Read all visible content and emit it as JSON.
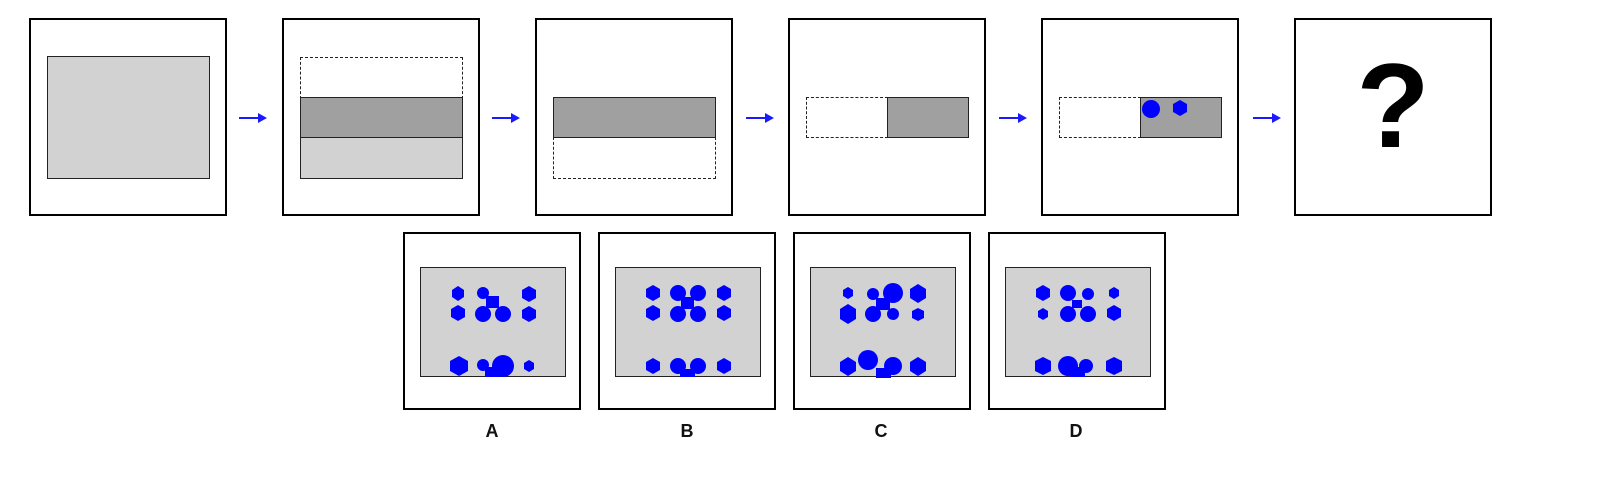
{
  "sequence": {
    "panels": [
      {
        "name": "panel-1",
        "desc_shapes": [
          "light-rect-full"
        ]
      },
      {
        "name": "panel-2"
      },
      {
        "name": "panel-3"
      },
      {
        "name": "panel-4"
      },
      {
        "name": "panel-5"
      },
      {
        "name": "panel-6",
        "question": "?"
      }
    ],
    "arrow_color": "#1a1aff"
  },
  "options": [
    {
      "label": "A"
    },
    {
      "label": "B"
    },
    {
      "label": "C"
    },
    {
      "label": "D"
    }
  ],
  "colors": {
    "light_gray": "#d2d2d2",
    "dark_gray": "#a0a0a0",
    "shape_blue": "#0000ff"
  }
}
